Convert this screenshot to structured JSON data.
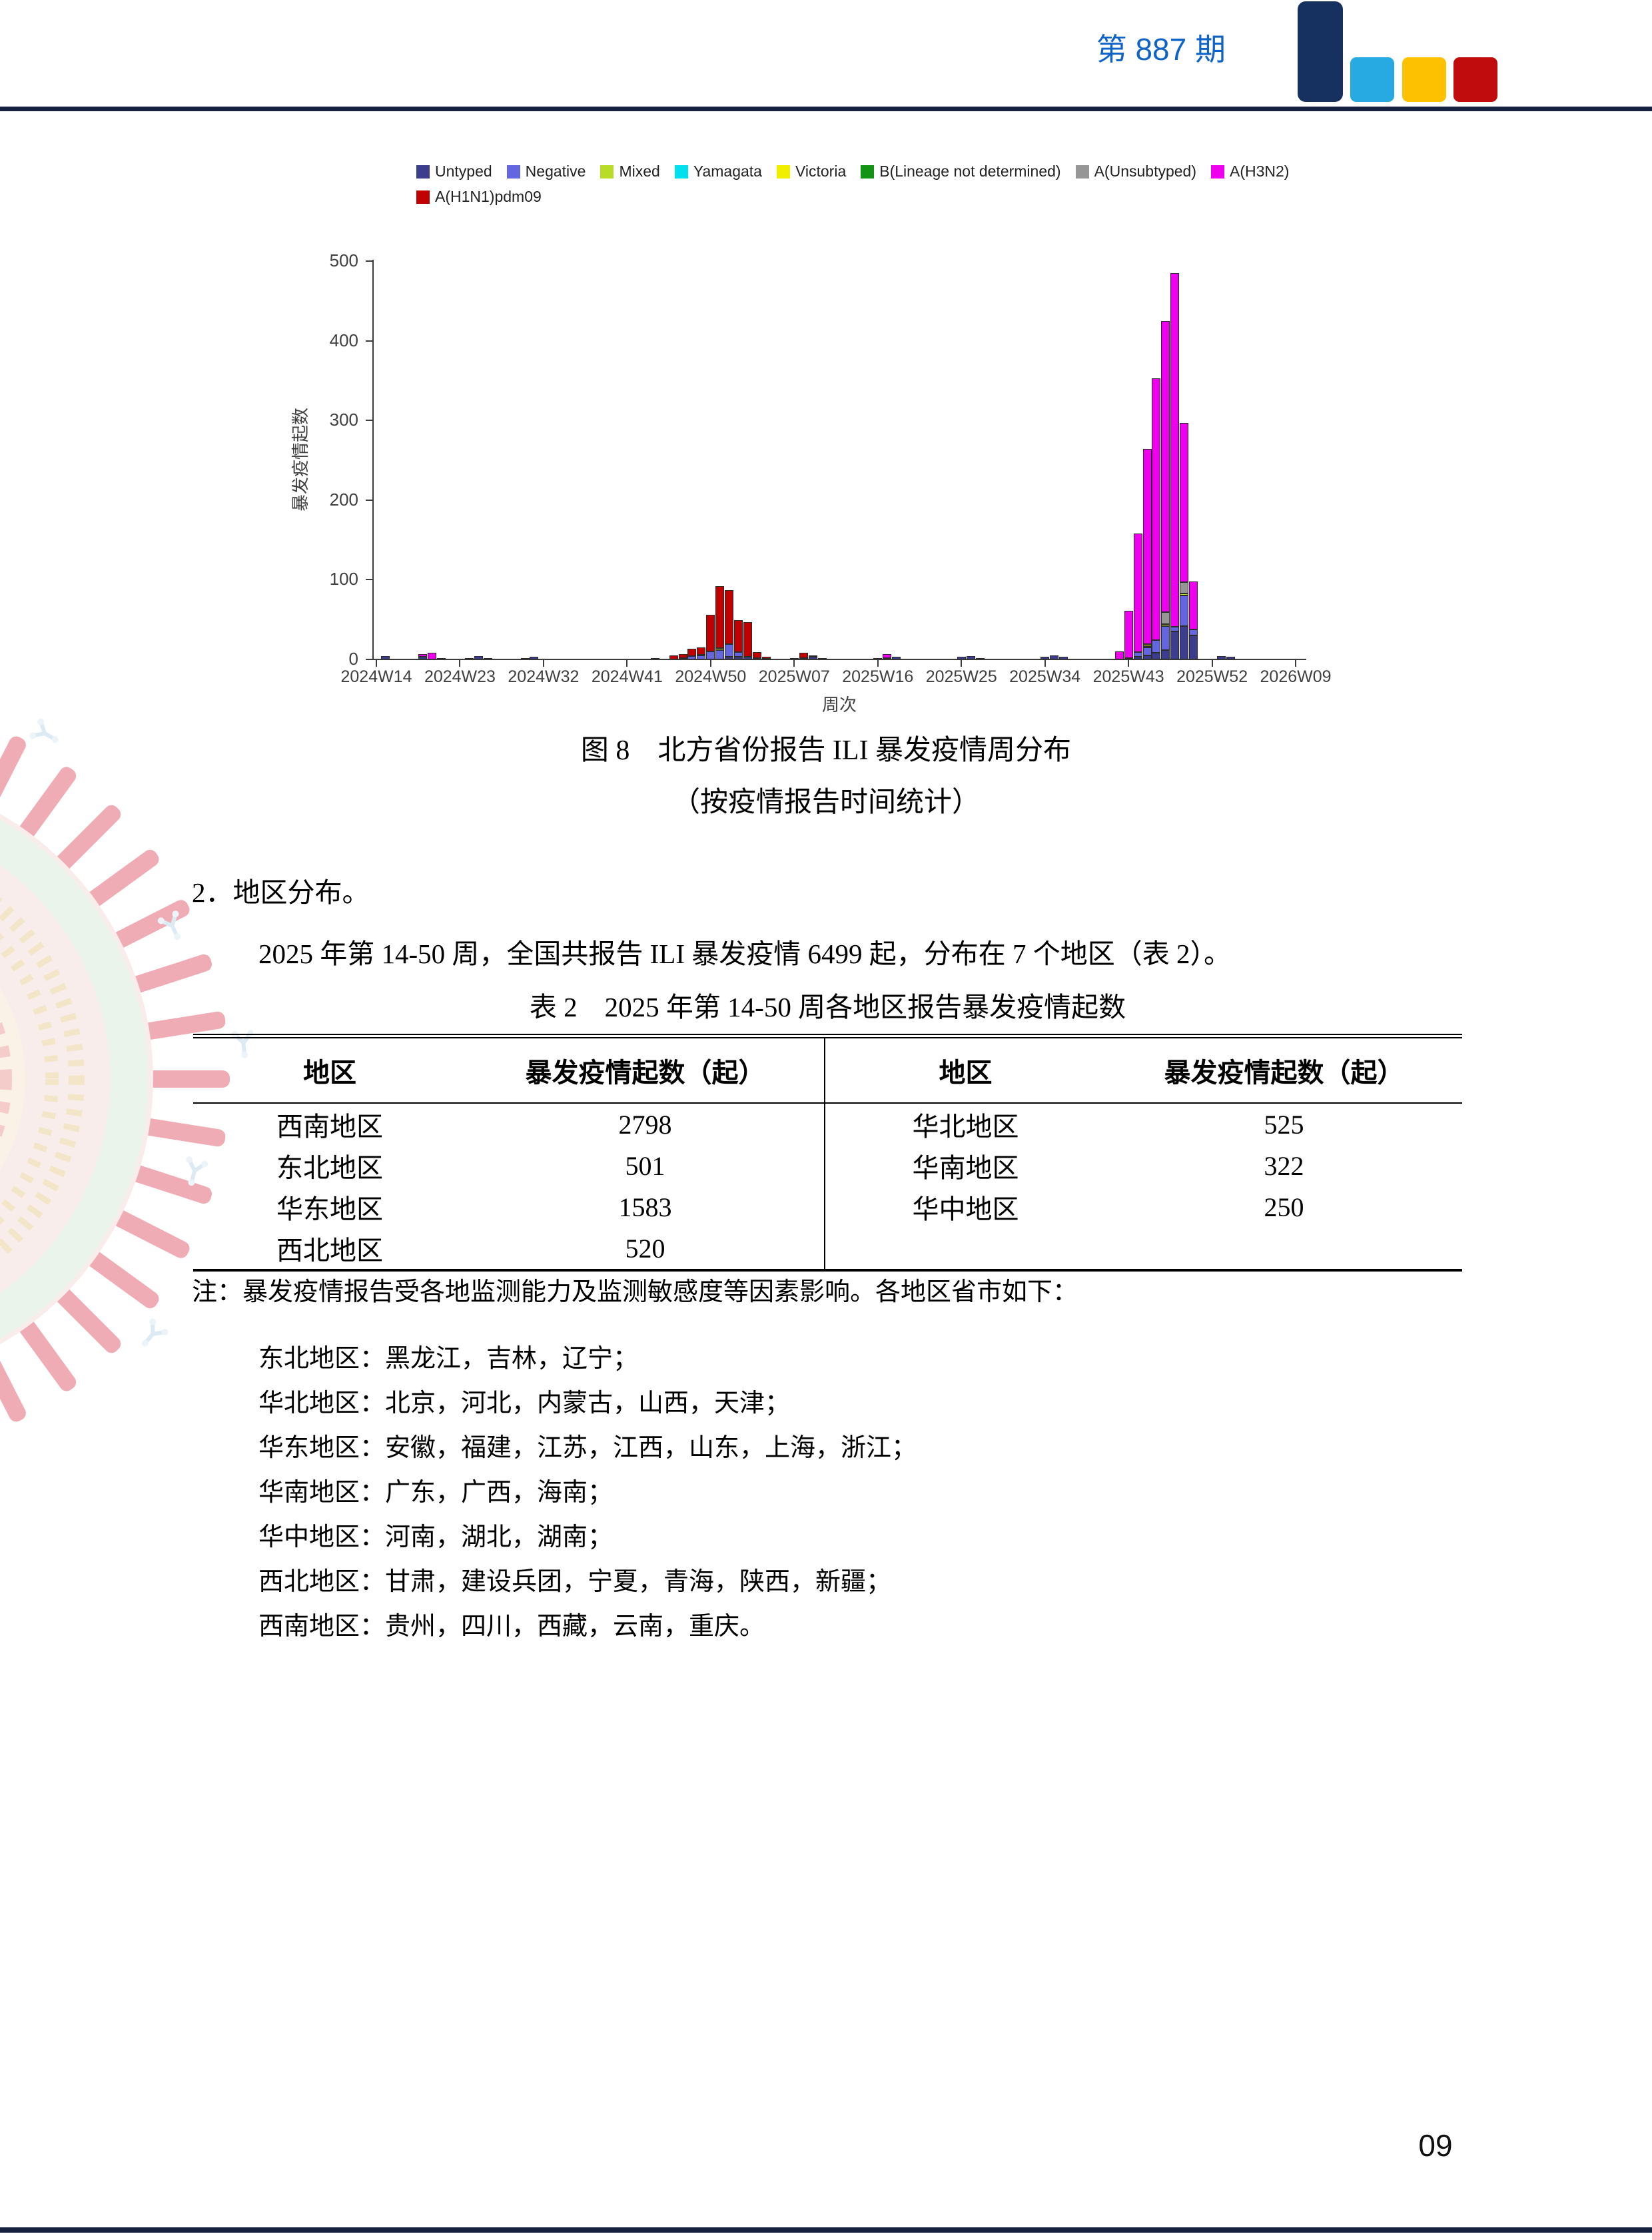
{
  "page": {
    "issue_label": "第 887 期",
    "page_number": "09"
  },
  "colors": {
    "title_blue": "#0f63c8",
    "rule_navy": "#16203f",
    "logo_navy": "#16315f",
    "logo_blue": "#27aae1",
    "logo_yellow": "#fdc101",
    "logo_red": "#c00c0c"
  },
  "figure": {
    "caption_line1": "图 8　北方省份报告 ILI 暴发疫情周分布",
    "caption_line2": "（按疫情报告时间统计）"
  },
  "section": {
    "heading": "2．地区分布。",
    "paragraph": "2025 年第 14-50 周，全国共报告 ILI 暴发疫情 6499 起，分布在 7 个地区（表 2）。"
  },
  "table": {
    "caption": "表 2　2025 年第 14-50 周各地区报告暴发疫情起数",
    "headers": [
      "地区",
      "暴发疫情起数（起）",
      "地区",
      "暴发疫情起数（起）"
    ],
    "rows": [
      [
        "西南地区",
        "2798",
        "华北地区",
        "525"
      ],
      [
        "东北地区",
        "501",
        "华南地区",
        "322"
      ],
      [
        "华东地区",
        "1583",
        "华中地区",
        "250"
      ],
      [
        "西北地区",
        "520",
        "",
        ""
      ]
    ]
  },
  "note": {
    "intro": "注：暴发疫情报告受各地监测能力及监测敏感度等因素影响。各地区省市如下：",
    "items": [
      "东北地区：黑龙江，吉林，辽宁；",
      "华北地区：北京，河北，内蒙古，山西，天津；",
      "华东地区：安徽，福建，江苏，江西，山东，上海，浙江；",
      "华南地区：广东，广西，海南；",
      "华中地区：河南，湖北，湖南；",
      "西北地区：甘肃，建设兵团，宁夏，青海，陕西，新疆；",
      "西南地区：贵州，四川，西藏，云南，重庆。"
    ]
  },
  "chart_data": {
    "type": "bar",
    "stacked": true,
    "title": "",
    "ylabel": "暴发疫情起数",
    "xlabel": "周次",
    "ylim": [
      0,
      500
    ],
    "yticks": [
      0,
      100,
      200,
      300,
      400,
      500
    ],
    "grid": false,
    "legend_position": "top",
    "x_ticks": [
      {
        "w": 0,
        "label": "2024W14"
      },
      {
        "w": 9,
        "label": "2024W23"
      },
      {
        "w": 18,
        "label": "2024W32"
      },
      {
        "w": 27,
        "label": "2024W41"
      },
      {
        "w": 36,
        "label": "2024W50"
      },
      {
        "w": 45,
        "label": "2025W07"
      },
      {
        "w": 54,
        "label": "2025W16"
      },
      {
        "w": 63,
        "label": "2025W25"
      },
      {
        "w": 72,
        "label": "2025W34"
      },
      {
        "w": 81,
        "label": "2025W43"
      },
      {
        "w": 90,
        "label": "2025W52"
      },
      {
        "w": 99,
        "label": "2026W09"
      }
    ],
    "legend": [
      {
        "key": "untyped",
        "label": "Untyped",
        "color": "#3d3d8f"
      },
      {
        "key": "negative",
        "label": "Negative",
        "color": "#6466e0"
      },
      {
        "key": "mixed",
        "label": "Mixed",
        "color": "#b8dc28"
      },
      {
        "key": "yamagata",
        "label": "Yamagata",
        "color": "#00e0ee"
      },
      {
        "key": "victoria",
        "label": "Victoria",
        "color": "#f2ee00"
      },
      {
        "key": "b_lineage",
        "label": "B(Lineage not determined)",
        "color": "#149414"
      },
      {
        "key": "a_unsub",
        "label": "A(Unsubtyped)",
        "color": "#969696"
      },
      {
        "key": "h3n2",
        "label": "A(H3N2)",
        "color": "#ee00ee"
      },
      {
        "key": "pdm09",
        "label": "A(H1N1)pdm09",
        "color": "#c00000"
      }
    ],
    "bars": [
      {
        "w": 1,
        "week": "2024W15",
        "segments": [
          [
            "untyped",
            4
          ]
        ]
      },
      {
        "w": 5,
        "week": "2024W19",
        "segments": [
          [
            "untyped",
            3
          ],
          [
            "h3n2",
            4
          ]
        ]
      },
      {
        "w": 6,
        "week": "2024W20",
        "segments": [
          [
            "h3n2",
            8
          ]
        ]
      },
      {
        "w": 7,
        "week": "2024W21",
        "segments": [
          [
            "untyped",
            2
          ]
        ]
      },
      {
        "w": 10,
        "week": "2024W24",
        "segments": [
          [
            "untyped",
            2
          ]
        ]
      },
      {
        "w": 11,
        "week": "2024W25",
        "segments": [
          [
            "untyped",
            4
          ]
        ]
      },
      {
        "w": 12,
        "week": "2024W26",
        "segments": [
          [
            "untyped",
            2
          ]
        ]
      },
      {
        "w": 16,
        "week": "2024W30",
        "segments": [
          [
            "untyped",
            2
          ]
        ]
      },
      {
        "w": 17,
        "week": "2024W31",
        "segments": [
          [
            "untyped",
            3
          ]
        ]
      },
      {
        "w": 30,
        "week": "2024W44",
        "segments": [
          [
            "untyped",
            2
          ]
        ]
      },
      {
        "w": 32,
        "week": "2024W46",
        "segments": [
          [
            "pdm09",
            5
          ]
        ]
      },
      {
        "w": 33,
        "week": "2024W47",
        "segments": [
          [
            "untyped",
            2
          ],
          [
            "pdm09",
            5
          ]
        ]
      },
      {
        "w": 34,
        "week": "2024W48",
        "segments": [
          [
            "negative",
            4
          ],
          [
            "pdm09",
            9
          ]
        ]
      },
      {
        "w": 35,
        "week": "2024W49",
        "segments": [
          [
            "negative",
            5
          ],
          [
            "mixed",
            1
          ],
          [
            "pdm09",
            9
          ]
        ]
      },
      {
        "w": 36,
        "week": "2024W50",
        "segments": [
          [
            "negative",
            10
          ],
          [
            "pdm09",
            46
          ]
        ]
      },
      {
        "w": 37,
        "week": "2024W51",
        "segments": [
          [
            "negative",
            12
          ],
          [
            "mixed",
            2
          ],
          [
            "pdm09",
            78
          ]
        ]
      },
      {
        "w": 38,
        "week": "2024W52",
        "segments": [
          [
            "untyped",
            3
          ],
          [
            "negative",
            16
          ],
          [
            "pdm09",
            68
          ]
        ]
      },
      {
        "w": 39,
        "week": "2025W01",
        "segments": [
          [
            "untyped",
            3
          ],
          [
            "negative",
            6
          ],
          [
            "pdm09",
            40
          ]
        ]
      },
      {
        "w": 40,
        "week": "2025W02",
        "segments": [
          [
            "untyped",
            3
          ],
          [
            "pdm09",
            44
          ]
        ]
      },
      {
        "w": 41,
        "week": "2025W03",
        "segments": [
          [
            "untyped",
            2
          ],
          [
            "pdm09",
            7
          ]
        ]
      },
      {
        "w": 42,
        "week": "2025W04",
        "segments": [
          [
            "untyped",
            1
          ],
          [
            "pdm09",
            2
          ]
        ]
      },
      {
        "w": 45,
        "week": "2025W07",
        "segments": [
          [
            "untyped",
            2
          ]
        ]
      },
      {
        "w": 46,
        "week": "2025W08",
        "segments": [
          [
            "untyped",
            2
          ],
          [
            "pdm09",
            6
          ]
        ]
      },
      {
        "w": 47,
        "week": "2025W09",
        "segments": [
          [
            "untyped",
            3
          ],
          [
            "pdm09",
            2
          ]
        ]
      },
      {
        "w": 48,
        "week": "2025W10",
        "segments": [
          [
            "untyped",
            2
          ]
        ]
      },
      {
        "w": 54,
        "week": "2025W16",
        "segments": [
          [
            "untyped",
            2
          ]
        ]
      },
      {
        "w": 55,
        "week": "2025W17",
        "segments": [
          [
            "untyped",
            2
          ],
          [
            "h3n2",
            5
          ]
        ]
      },
      {
        "w": 56,
        "week": "2025W18",
        "segments": [
          [
            "untyped",
            3
          ]
        ]
      },
      {
        "w": 63,
        "week": "2025W25",
        "segments": [
          [
            "untyped",
            3
          ]
        ]
      },
      {
        "w": 64,
        "week": "2025W26",
        "segments": [
          [
            "untyped",
            4
          ]
        ]
      },
      {
        "w": 65,
        "week": "2025W27",
        "segments": [
          [
            "untyped",
            2
          ]
        ]
      },
      {
        "w": 72,
        "week": "2025W34",
        "segments": [
          [
            "untyped",
            3
          ]
        ]
      },
      {
        "w": 73,
        "week": "2025W35",
        "segments": [
          [
            "untyped",
            5
          ]
        ]
      },
      {
        "w": 74,
        "week": "2025W36",
        "segments": [
          [
            "untyped",
            3
          ]
        ]
      },
      {
        "w": 80,
        "week": "2025W42",
        "segments": [
          [
            "h3n2",
            10
          ]
        ]
      },
      {
        "w": 81,
        "week": "2025W43",
        "segments": [
          [
            "untyped",
            2
          ],
          [
            "h3n2",
            59
          ]
        ]
      },
      {
        "w": 82,
        "week": "2025W44",
        "segments": [
          [
            "untyped",
            3
          ],
          [
            "negative",
            6
          ],
          [
            "h3n2",
            149
          ]
        ]
      },
      {
        "w": 83,
        "week": "2025W45",
        "segments": [
          [
            "untyped",
            5
          ],
          [
            "negative",
            10
          ],
          [
            "mixed",
            2
          ],
          [
            "victoria",
            2
          ],
          [
            "h3n2",
            245
          ]
        ]
      },
      {
        "w": 84,
        "week": "2025W46",
        "segments": [
          [
            "untyped",
            8
          ],
          [
            "negative",
            16
          ],
          [
            "h3n2",
            329
          ]
        ]
      },
      {
        "w": 85,
        "week": "2025W47",
        "segments": [
          [
            "untyped",
            12
          ],
          [
            "negative",
            30
          ],
          [
            "mixed",
            2
          ],
          [
            "a_unsub",
            15
          ],
          [
            "h3n2",
            366
          ]
        ]
      },
      {
        "w": 86,
        "week": "2025W48",
        "segments": [
          [
            "untyped",
            35
          ],
          [
            "negative",
            6
          ],
          [
            "h3n2",
            444
          ]
        ]
      },
      {
        "w": 87,
        "week": "2025W49",
        "segments": [
          [
            "untyped",
            42
          ],
          [
            "negative",
            38
          ],
          [
            "mixed",
            3
          ],
          [
            "a_unsub",
            14
          ],
          [
            "h3n2",
            200
          ]
        ]
      },
      {
        "w": 88,
        "week": "2025W50",
        "segments": [
          [
            "untyped",
            30
          ],
          [
            "negative",
            8
          ],
          [
            "h3n2",
            60
          ]
        ]
      },
      {
        "w": 91,
        "week": "2026W01",
        "segments": [
          [
            "untyped",
            4
          ]
        ]
      },
      {
        "w": 92,
        "week": "2026W02",
        "segments": [
          [
            "untyped",
            3
          ]
        ]
      }
    ]
  }
}
